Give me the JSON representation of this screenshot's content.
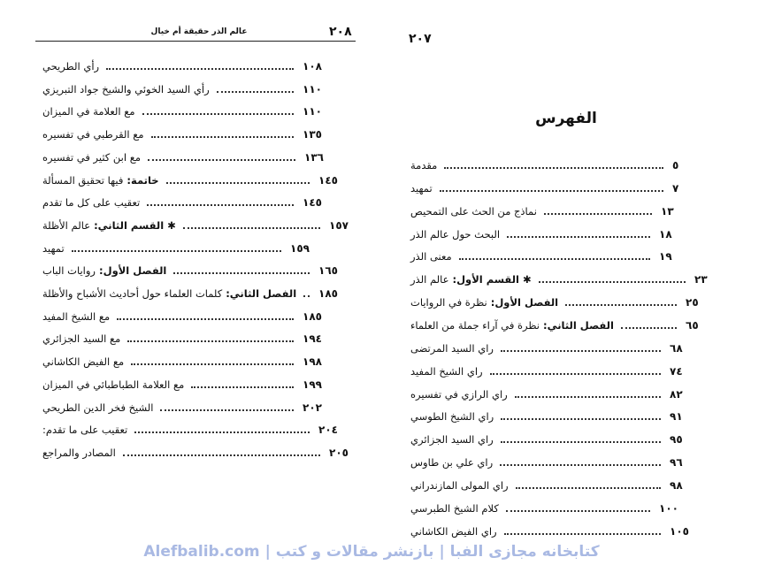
{
  "left_page": {
    "page_number": "٢٠٨",
    "running_header": "عالم الذر حقيقة أم خيال",
    "entries": [
      {
        "text": "رأي الطريحي",
        "page": "١٠٨"
      },
      {
        "text": "رأي السيد الخوئي والشيخ جواد التبريزي",
        "page": "١١٠"
      },
      {
        "text": "مع العلامة في الميزان",
        "page": "١١٠"
      },
      {
        "text": "مع القرطبي في تفسيره",
        "page": "١٣٥"
      },
      {
        "text": "مع ابن كثير في تفسيره",
        "page": "١٣٦"
      },
      {
        "label": "خاتمة:",
        "text": "فيها تحقيق المسألة",
        "page": "١٤٥"
      },
      {
        "text": "تعقيب على كل ما تقدم",
        "page": "١٤٥"
      },
      {
        "label": "✱ القسم الثاني:",
        "text": "عالم الأظلة",
        "page": "١٥٧"
      },
      {
        "text": "تمهيد",
        "page": "١٥٩"
      },
      {
        "label": "الفصل الأول:",
        "text": "روايات الباب",
        "page": "١٦٥"
      },
      {
        "label": "الفصل الثاني:",
        "text": "كلمات العلماء حول أحاديث الأشباح والأظلة",
        "page": "١٨٥"
      },
      {
        "text": "مع الشيخ المفيد",
        "page": "١٨٥"
      },
      {
        "text": "مع السيد الجزائري",
        "page": "١٩٤"
      },
      {
        "text": "مع الفيض الكاشاني",
        "page": "١٩٨"
      },
      {
        "text": "مع العلامة الطباطبائي في الميزان",
        "page": "١٩٩"
      },
      {
        "text": "الشيخ فخر الدين الطريحي",
        "page": "٢٠٢"
      },
      {
        "text": "تعقيب على ما تقدم:",
        "page": "٢٠٤"
      },
      {
        "text": "المصادر والمراجع",
        "page": "٢٠٥"
      }
    ]
  },
  "right_page": {
    "page_number": "٢٠٧",
    "title": "الفهرس",
    "entries": [
      {
        "text": "مقدمة",
        "page": "٥"
      },
      {
        "text": "تمهيد",
        "page": "٧"
      },
      {
        "text": "نماذج من الحث على التمحيص",
        "page": "١٣"
      },
      {
        "text": "البحث حول عالم الذر",
        "page": "١٨"
      },
      {
        "text": "معنى الذر",
        "page": "١٩"
      },
      {
        "label": "✱ القسم الأول:",
        "text": "عالم الذر",
        "page": "٢٣"
      },
      {
        "label": "الفصل الأول:",
        "text": "نظرة في الروايات",
        "page": "٢٥"
      },
      {
        "label": "الفصل الثاني:",
        "text": "نظرة في آراء جملة من العلماء",
        "page": "٦٥"
      },
      {
        "text": "راي السيد المرتضى",
        "page": "٦٨"
      },
      {
        "text": "راي الشيخ المفيد",
        "page": "٧٤"
      },
      {
        "text": "راي الرازي في تفسيره",
        "page": "٨٢"
      },
      {
        "text": "راي الشيخ الطوسي",
        "page": "٩١"
      },
      {
        "text": "راي السيد الجزائري",
        "page": "٩٥"
      },
      {
        "text": "راي علي بن طاوس",
        "page": "٩٦"
      },
      {
        "text": "راي المولى المازندراني",
        "page": "٩٨"
      },
      {
        "text": "كلام الشيخ الطبرسي",
        "page": "١٠٠"
      },
      {
        "text": "راي الفيض الكاشاني",
        "page": "١٠٥"
      }
    ]
  },
  "watermark": "Alefbalib.com | کتابخانه مجازی الفبا | بازنشر مقالات و کتب"
}
